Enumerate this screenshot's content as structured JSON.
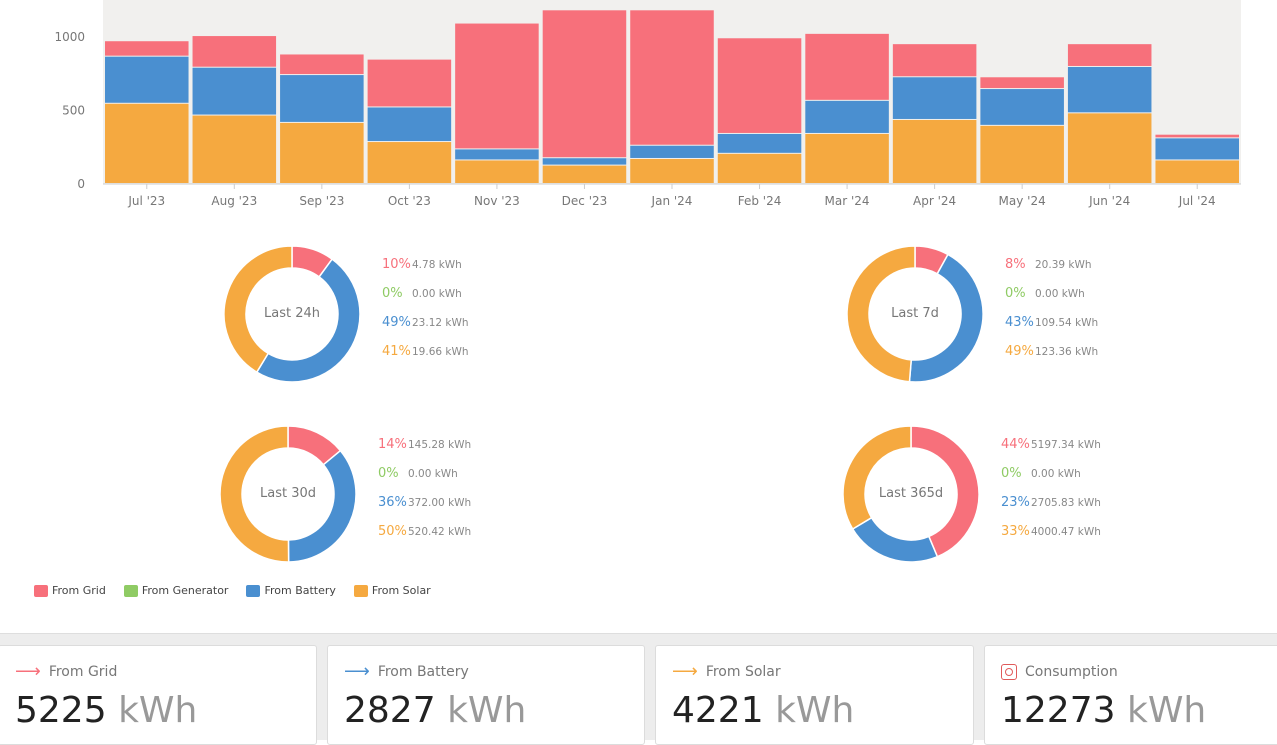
{
  "colors": {
    "grid": "#f7707b",
    "generator": "#8fcb64",
    "battery": "#4a8fd0",
    "solar": "#f5a940"
  },
  "chart_data": [
    {
      "type": "bar",
      "stacked": true,
      "categories": [
        "Jul '23",
        "Aug '23",
        "Sep '23",
        "Oct '23",
        "Nov '23",
        "Dec '23",
        "Jan '24",
        "Feb '24",
        "Mar '24",
        "Apr '24",
        "May '24",
        "Jun '24",
        "Jul '24"
      ],
      "series": [
        {
          "name": "From Solar",
          "color": "#f5a940",
          "values": [
            545,
            465,
            415,
            285,
            160,
            125,
            170,
            205,
            340,
            435,
            395,
            480,
            160
          ]
        },
        {
          "name": "From Battery",
          "color": "#4a8fd0",
          "values": [
            320,
            325,
            325,
            235,
            75,
            50,
            90,
            135,
            225,
            290,
            250,
            315,
            150
          ]
        },
        {
          "name": "From Grid",
          "color": "#f7707b",
          "values": [
            105,
            215,
            140,
            325,
            855,
            1005,
            920,
            650,
            455,
            225,
            80,
            155,
            25
          ]
        }
      ],
      "ylim": [
        0,
        1250
      ],
      "yticks": [
        "0",
        "500",
        "1000"
      ],
      "grid": false
    },
    {
      "type": "pie",
      "title": "Last 24h",
      "slices": [
        {
          "label": "From Grid",
          "pct": "10%",
          "kwh": "4.78 kWh",
          "value": 4.78
        },
        {
          "label": "From Generator",
          "pct": "0%",
          "kwh": "0.00 kWh",
          "value": 0
        },
        {
          "label": "From Battery",
          "pct": "49%",
          "kwh": "23.12 kWh",
          "value": 23.12
        },
        {
          "label": "From Solar",
          "pct": "41%",
          "kwh": "19.66 kWh",
          "value": 19.66
        }
      ]
    },
    {
      "type": "pie",
      "title": "Last 7d",
      "slices": [
        {
          "label": "From Grid",
          "pct": "8%",
          "kwh": "20.39 kWh",
          "value": 20.39
        },
        {
          "label": "From Generator",
          "pct": "0%",
          "kwh": "0.00 kWh",
          "value": 0
        },
        {
          "label": "From Battery",
          "pct": "43%",
          "kwh": "109.54 kWh",
          "value": 109.54
        },
        {
          "label": "From Solar",
          "pct": "49%",
          "kwh": "123.36 kWh",
          "value": 123.36
        }
      ]
    },
    {
      "type": "pie",
      "title": "Last 30d",
      "slices": [
        {
          "label": "From Grid",
          "pct": "14%",
          "kwh": "145.28 kWh",
          "value": 145.28
        },
        {
          "label": "From Generator",
          "pct": "0%",
          "kwh": "0.00 kWh",
          "value": 0
        },
        {
          "label": "From Battery",
          "pct": "36%",
          "kwh": "372.00 kWh",
          "value": 372.0
        },
        {
          "label": "From Solar",
          "pct": "50%",
          "kwh": "520.42 kWh",
          "value": 520.42
        }
      ]
    },
    {
      "type": "pie",
      "title": "Last 365d",
      "slices": [
        {
          "label": "From Grid",
          "pct": "44%",
          "kwh": "5197.34 kWh",
          "value": 5197.34
        },
        {
          "label": "From Generator",
          "pct": "0%",
          "kwh": "0.00 kWh",
          "value": 0
        },
        {
          "label": "From Battery",
          "pct": "23%",
          "kwh": "2705.83 kWh",
          "value": 2705.83
        },
        {
          "label": "From Solar",
          "pct": "33%",
          "kwh": "4000.47 kWh",
          "value": 4000.47
        }
      ]
    }
  ],
  "legend": [
    {
      "label": "From Grid",
      "color": "#f7707b"
    },
    {
      "label": "From Generator",
      "color": "#8fcb64"
    },
    {
      "label": "From Battery",
      "color": "#4a8fd0"
    },
    {
      "label": "From Solar",
      "color": "#f5a940"
    }
  ],
  "cards": [
    {
      "title": "From Grid",
      "value": "5225",
      "unit": "kWh",
      "icon": "arrow-right-icon",
      "color": "#f7707b"
    },
    {
      "title": "From Battery",
      "value": "2827",
      "unit": "kWh",
      "icon": "arrow-right-icon",
      "color": "#4a8fd0"
    },
    {
      "title": "From Solar",
      "value": "4221",
      "unit": "kWh",
      "icon": "arrow-right-icon",
      "color": "#f5a940"
    },
    {
      "title": "Consumption",
      "value": "12273",
      "unit": "kWh",
      "icon": "power-outlet-icon",
      "color": "#e05a5a"
    }
  ]
}
